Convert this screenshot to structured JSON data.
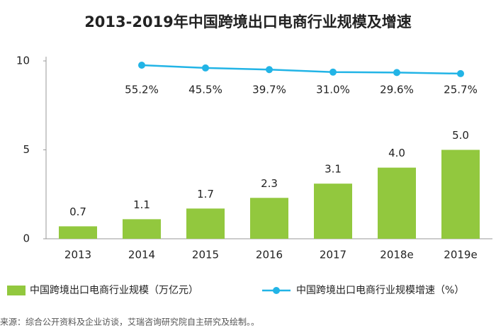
{
  "chart_data": {
    "type": "bar_line",
    "title": "2013-2019年中国跨境出口电商行业规模及增速",
    "categories": [
      "2013",
      "2014",
      "2015",
      "2016",
      "2017",
      "2018e",
      "2019e"
    ],
    "series": [
      {
        "name": "中国跨境出口电商行业规模（万亿元）",
        "type": "bar",
        "color": "#92c83e",
        "values": [
          0.7,
          1.1,
          1.7,
          2.3,
          3.1,
          4.0,
          5.0
        ],
        "value_labels": [
          "0.7",
          "1.1",
          "1.7",
          "2.3",
          "3.1",
          "4.0",
          "5.0"
        ]
      },
      {
        "name": "中国跨境出口电商行业规模增速（%）",
        "type": "line",
        "color": "#22b4e6",
        "axis": "y2",
        "values": [
          null,
          55.2,
          45.5,
          39.7,
          31.0,
          29.6,
          25.7
        ],
        "value_labels": [
          null,
          "55.2%",
          "45.5%",
          "39.7%",
          "31.0%",
          "29.6%",
          "25.7%"
        ]
      }
    ],
    "ylim": [
      0,
      10
    ],
    "yticks": [
      0,
      5,
      10
    ],
    "y2lim": [
      -550,
      70
    ],
    "source": "来源：综合公开资料及企业访谈，艾瑞咨询研究院自主研究及绘制。。"
  }
}
